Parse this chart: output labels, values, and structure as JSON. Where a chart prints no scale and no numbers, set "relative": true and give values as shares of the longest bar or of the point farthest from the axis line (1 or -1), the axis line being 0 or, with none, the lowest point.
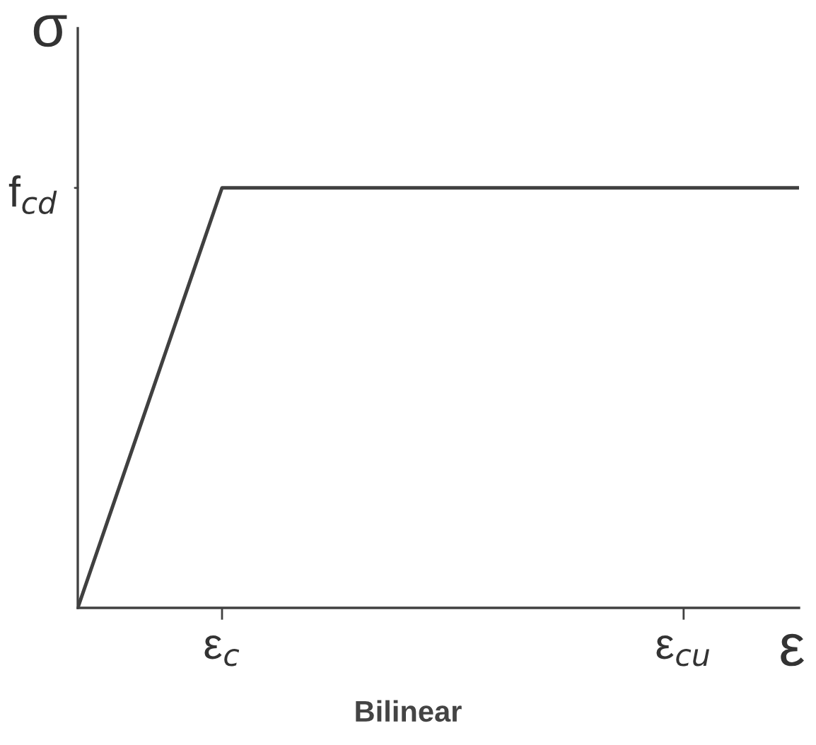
{
  "chart_data": {
    "type": "line",
    "title": "Bilinear",
    "xlabel": "ε",
    "ylabel": "σ",
    "relative": true,
    "categories": [
      null,
      null,
      null,
      null,
      null,
      "ε$_{c}$",
      null,
      null,
      null,
      null,
      null,
      null,
      null,
      null,
      null,
      null,
      null,
      null,
      null,
      null,
      null,
      "ε$_{cu}$",
      null,
      null,
      null,
      null
    ],
    "series": [
      {
        "color": "#404040",
        "values": [
          0,
          0.2,
          0.4,
          0.6,
          0.8,
          1,
          1,
          1,
          1,
          1,
          1,
          1,
          1,
          1,
          1,
          1,
          1,
          1,
          1,
          1,
          1,
          1,
          1,
          1,
          1,
          1
        ]
      }
    ],
    "annotations": [
      "f$_{cd}$"
    ],
    "grid": false,
    "marker": "none",
    "line_style": "solid"
  }
}
